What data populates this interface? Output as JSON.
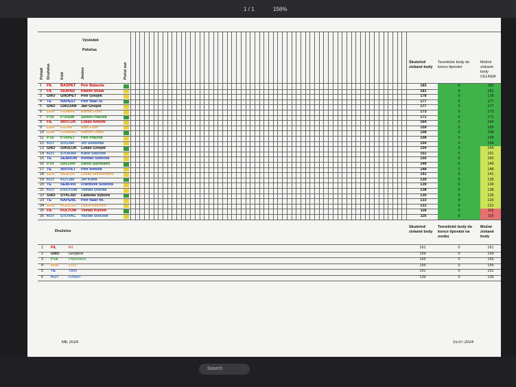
{
  "toolbar": {
    "page": "1 / 1",
    "zoom": "156%"
  },
  "main_table": {
    "headers": {
      "result": "Výsledek",
      "halftime": "Poločas",
      "rank": "Pořadí",
      "team": "Družstvo",
      "code": "Kód",
      "name": "Jméno",
      "outs": "Počet out",
      "actual": "Skutečně získané body",
      "theoretical": "Teoretické body do konce tipování",
      "possible": "Možné získané body CELKEM"
    },
    "rows": [
      [
        "1",
        "FIL",
        "BASPET",
        "Petr Balanda",
        183,
        0,
        183
      ],
      [
        "2",
        "FIL",
        "SIURAD",
        "Radim Siuda",
        181,
        0,
        181
      ],
      [
        "3",
        "GNO",
        "GNOPET",
        "Petr Gnojek",
        178,
        0,
        178
      ],
      [
        "4",
        "TE",
        "NAPEST",
        "Petr Naar st.",
        177,
        0,
        177
      ],
      [
        "5",
        "GNO",
        "GNOJAN",
        "Jan Gnojek",
        177,
        0,
        177
      ],
      [
        "6",
        "ERA",
        "FISMAR",
        "Marek Fiser",
        173,
        0,
        173
      ],
      [
        "7",
        "PTA",
        "PTASIM",
        "Šimon Ptáčník",
        171,
        0,
        171
      ],
      [
        "8",
        "FIL",
        "ANTLUK",
        "Lukáš Antolík",
        164,
        0,
        164
      ],
      [
        "9",
        "ERA",
        "FIZIVA",
        "Ivan Fizer",
        159,
        0,
        159
      ],
      [
        "10",
        "ERA",
        "FRAMAR",
        "Martin Frank",
        158,
        0,
        158
      ],
      [
        "11",
        "PTA",
        "PTAPET",
        "Petr Ptáčník",
        158,
        0,
        158
      ],
      [
        "12",
        "KOT",
        "SVOJIR",
        "Jiří Svoboda",
        154,
        0,
        154
      ],
      [
        "13",
        "GNO",
        "GNOLUK",
        "Lukáš Gnojek",
        154,
        0,
        154
      ],
      [
        "14",
        "KOT",
        "STOKAR",
        "Karel Stoczek",
        151,
        0,
        151
      ],
      [
        "15",
        "TE",
        "SEBROM",
        "Roman Šebesta",
        150,
        0,
        150
      ],
      [
        "16",
        "PTA",
        "SALDAV",
        "David Salzmann",
        149,
        0,
        149
      ],
      [
        "17",
        "TE",
        "ANTPET",
        "Petr Antolík",
        148,
        0,
        148
      ],
      [
        "18",
        "ERA",
        "WEILUK",
        "Lukáš Weissmann",
        141,
        0,
        141
      ],
      [
        "19",
        "KOT",
        "KOTJIR",
        "Jiří Kotiš",
        139,
        0,
        139
      ],
      [
        "20",
        "TE",
        "SEBFRA",
        "František Šebesta",
        139,
        0,
        139
      ],
      [
        "21",
        "KOT",
        "DVOTOM",
        "Tomáš Dvořák",
        138,
        0,
        138
      ],
      [
        "22",
        "GNO",
        "SYKLAD",
        "Ladislav Sýkora",
        135,
        0,
        135
      ],
      [
        "23",
        "TE",
        "NAPEML",
        "Petr Naar ml.",
        133,
        0,
        133
      ],
      [
        "24",
        "ERA",
        "KOZLUD",
        "Luďa Kozluch",
        131,
        0,
        131
      ],
      [
        "25",
        "FIL",
        "KULTOM",
        "Tomáš Kulvelt",
        118,
        0,
        118
      ],
      [
        "26",
        "KOT",
        "STOVAC",
        "Václav Stoczek",
        116,
        0,
        116
      ]
    ]
  },
  "team_colors": {
    "FIL": "#d00000",
    "GNO": "#111111",
    "TE": "#1f3fbf",
    "PTA": "#1a8a1a",
    "ERA": "#e89a3a",
    "KOT": "#2060b0"
  },
  "team_table": {
    "headers": {
      "team": "Družstvo",
      "actual": "Skutečně získané body",
      "theoretical": "Teoretické body do konce tipování na osobu",
      "possible": "Možné získané body"
    },
    "rows": [
      [
        "1",
        "FIL",
        "Fil",
        161,
        0,
        161
      ],
      [
        "2",
        "GNO",
        "Gnojkovi",
        159,
        0,
        159
      ],
      [
        "3",
        "PTA",
        "Ptáčníkovi",
        155,
        0,
        155
      ],
      [
        "4",
        "ERA",
        "Eraři",
        155,
        0,
        155
      ],
      [
        "5",
        "TE",
        "Tarto",
        151,
        0,
        151
      ],
      [
        "6",
        "KOT",
        "Kotlání",
        139,
        0,
        139
      ]
    ]
  },
  "footer": {
    "left": "ME 2024",
    "right": "15.07.2024"
  },
  "taskbar": {
    "search": "Search"
  }
}
